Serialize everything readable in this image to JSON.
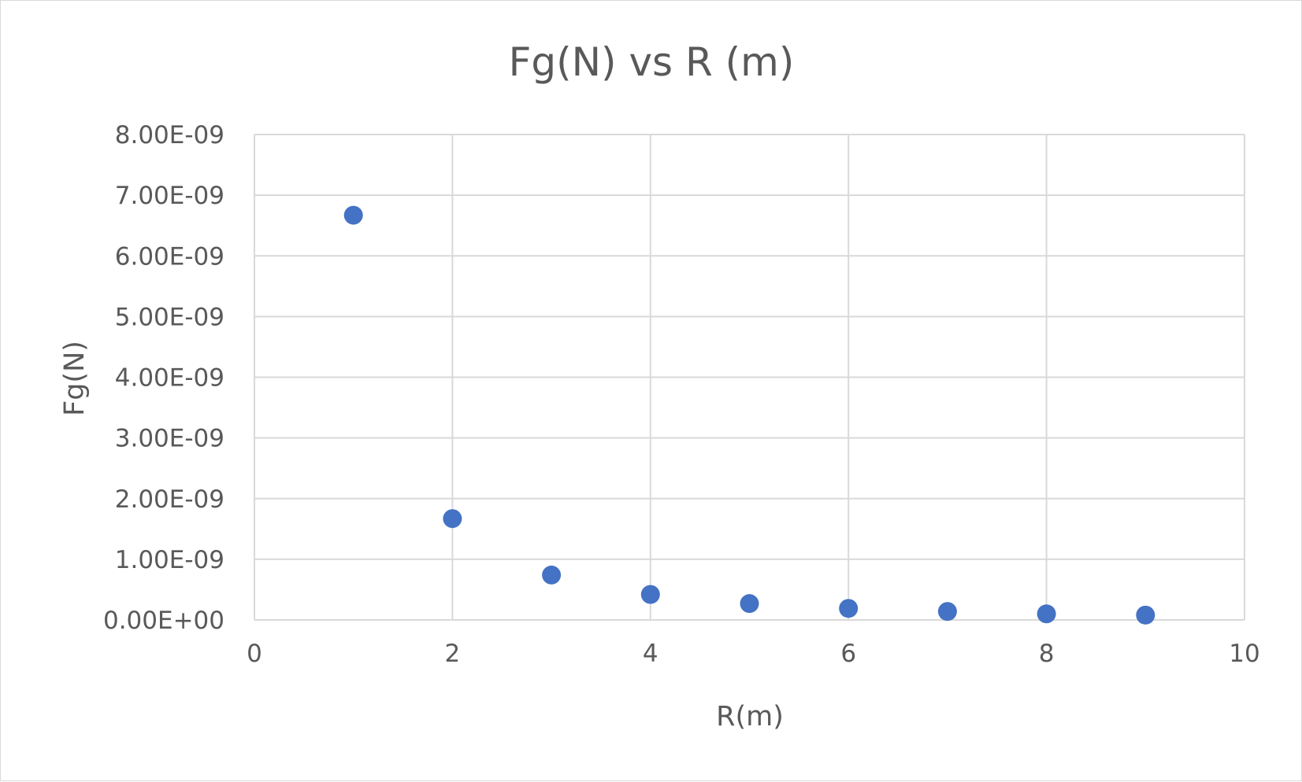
{
  "chart_data": {
    "type": "scatter",
    "title": "Fg(N) vs R (m)",
    "xlabel": "R(m)",
    "ylabel": "Fg(N)",
    "xlim": [
      0,
      10
    ],
    "ylim": [
      0,
      8e-09
    ],
    "x_ticks": [
      0,
      2,
      4,
      6,
      8,
      10
    ],
    "x_tick_labels": [
      "0",
      "2",
      "4",
      "6",
      "8",
      "10"
    ],
    "y_ticks": [
      0,
      1e-09,
      2e-09,
      3e-09,
      4e-09,
      5e-09,
      6e-09,
      7e-09,
      8e-09
    ],
    "y_tick_labels": [
      "0.00E+00",
      "1.00E-09",
      "2.00E-09",
      "3.00E-09",
      "4.00E-09",
      "5.00E-09",
      "6.00E-09",
      "7.00E-09",
      "8.00E-09"
    ],
    "grid": true,
    "legend": "none",
    "marker_color": "#4472C4",
    "series": [
      {
        "x": [
          1,
          2,
          3,
          4,
          5,
          6,
          7,
          8,
          9
        ],
        "y": [
          6.67e-09,
          1.67e-09,
          7.4e-10,
          4.2e-10,
          2.7e-10,
          1.9e-10,
          1.4e-10,
          1e-10,
          8e-11
        ]
      }
    ]
  }
}
